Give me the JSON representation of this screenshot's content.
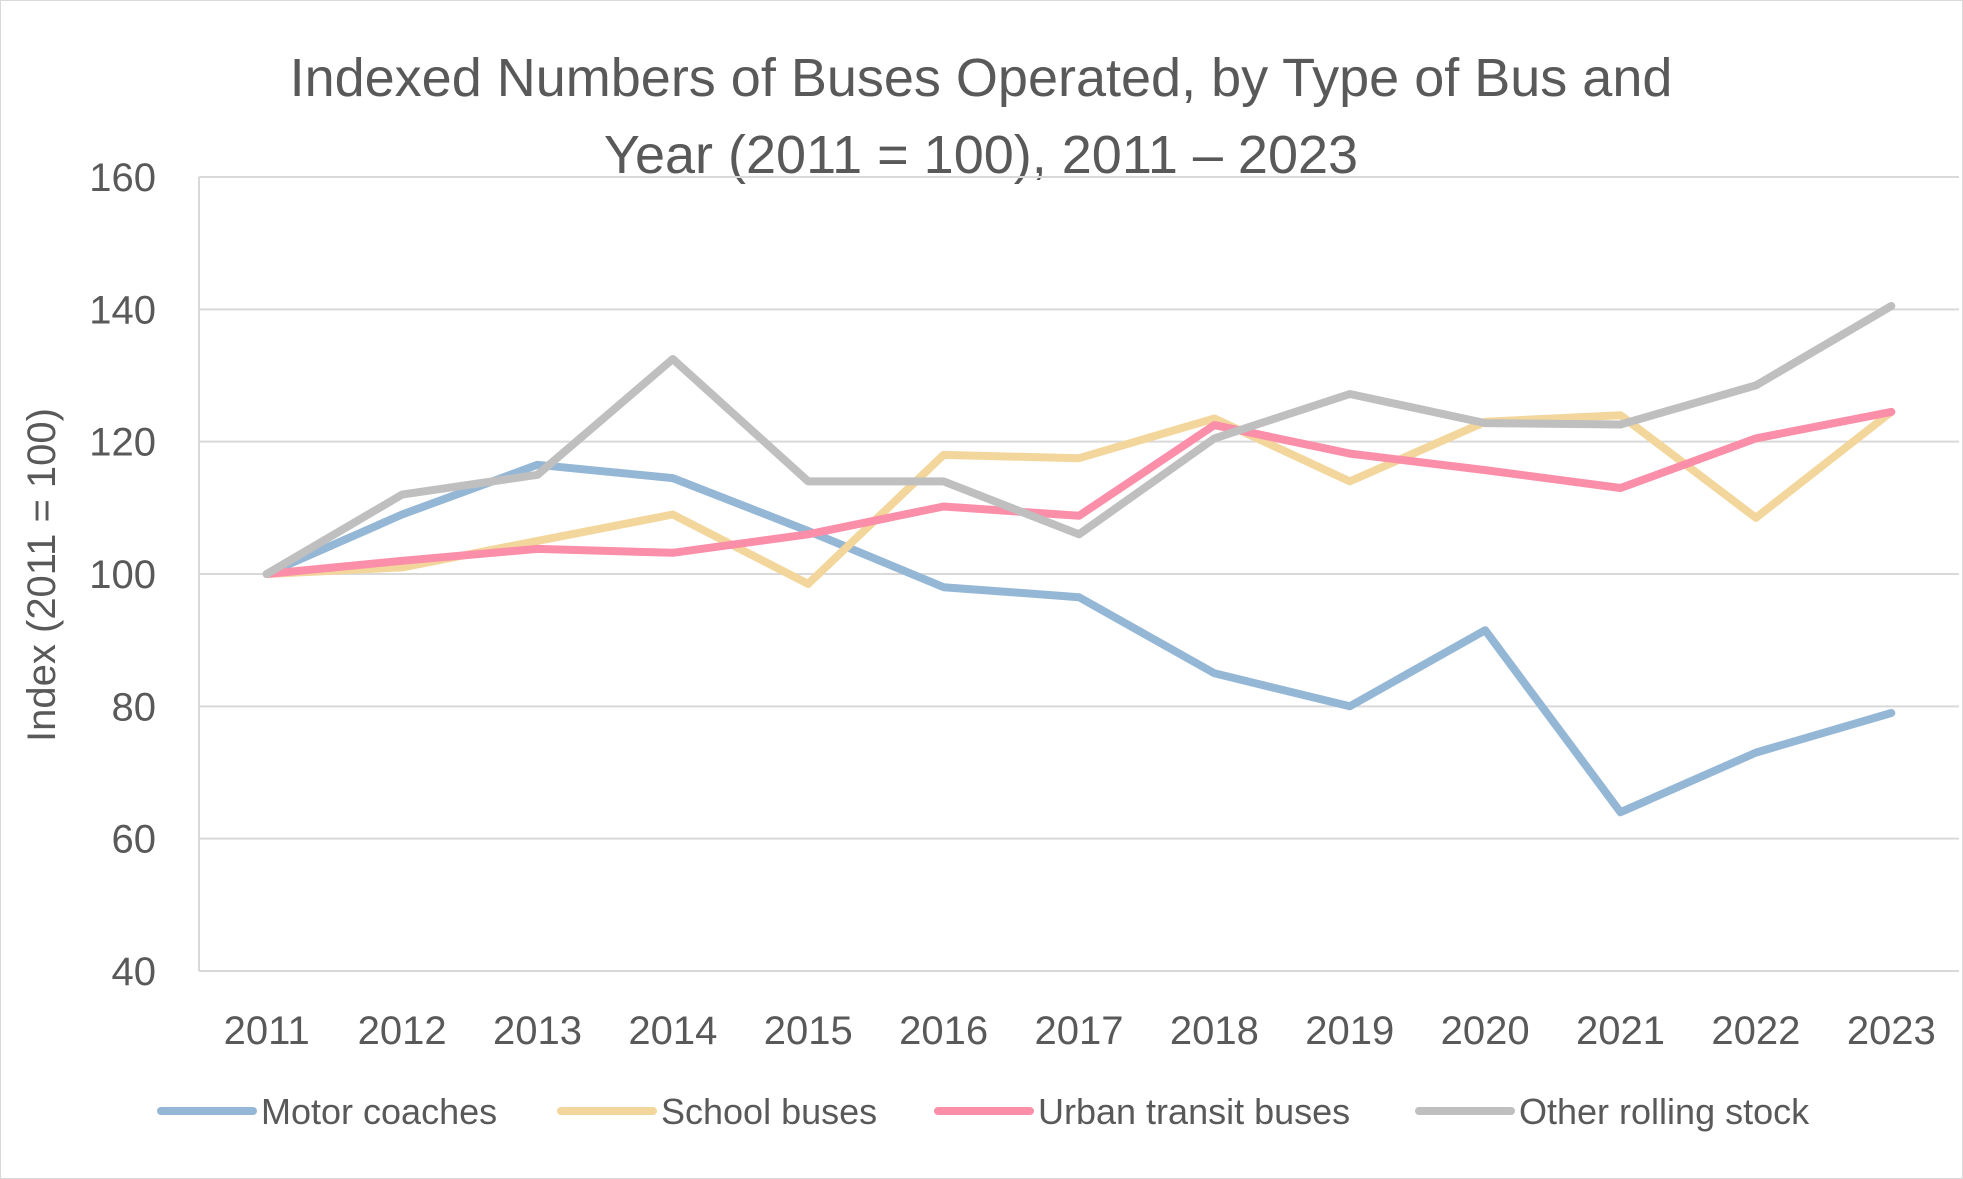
{
  "chart_data": {
    "type": "line",
    "title_lines": [
      "Indexed Numbers of Buses Operated, by Type of Bus and",
      "Year (2011 = 100), 2011 – 2023"
    ],
    "ylabel": "Index (2011 = 100)",
    "xlabel": "",
    "categories": [
      "2011",
      "2012",
      "2013",
      "2014",
      "2015",
      "2016",
      "2017",
      "2018",
      "2019",
      "2020",
      "2021",
      "2022",
      "2023"
    ],
    "ylim": [
      40,
      160
    ],
    "yticks": [
      "40",
      "60",
      "80",
      "100",
      "120",
      "140",
      "160"
    ],
    "grid": true,
    "legend_position": "bottom",
    "series": [
      {
        "name": "Motor coaches",
        "color": "#95b7d6",
        "values": [
          100,
          109,
          116.5,
          114.5,
          106.5,
          98,
          96.5,
          85,
          80,
          91.5,
          64,
          73,
          79
        ]
      },
      {
        "name": "School buses",
        "color": "#f3d69b",
        "values": [
          100,
          101,
          105,
          109,
          98.5,
          118,
          117.5,
          123.5,
          114,
          123,
          124,
          108.5,
          124.5
        ]
      },
      {
        "name": "Urban transit buses",
        "color": "#fb8ea8",
        "values": [
          100,
          102,
          103.8,
          103.2,
          106,
          110.2,
          108.8,
          122.5,
          118.2,
          115.7,
          113,
          120.5,
          124.5
        ]
      },
      {
        "name": "Other rolling stock",
        "color": "#bfbfbf",
        "values": [
          100,
          112,
          115,
          132.5,
          114,
          114,
          106,
          120.5,
          127.2,
          122.8,
          122.6,
          128.5,
          140.5
        ]
      }
    ]
  }
}
